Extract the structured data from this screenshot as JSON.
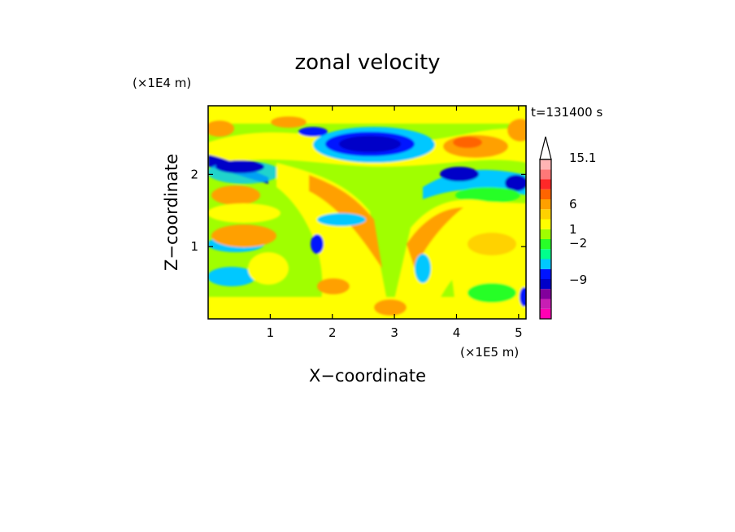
{
  "chart_data": {
    "type": "heatmap",
    "title": "zonal velocity",
    "xlabel": "X−coordinate",
    "ylabel": "Z−coordinate",
    "x_multiplier": "(×1E5 m)",
    "y_multiplier": "(×1E4 m)",
    "time_label": "t=131400 s",
    "xlim": [
      0,
      5.12
    ],
    "ylim": [
      0,
      2.95
    ],
    "x_ticks": [
      1,
      2,
      3,
      4,
      5
    ],
    "y_ticks": [
      1,
      2
    ],
    "x_tick_labels": [
      "1",
      "2",
      "3",
      "4",
      "5"
    ],
    "y_tick_labels": [
      "1",
      "2"
    ],
    "colorbar": {
      "colors": [
        "#ff00b4",
        "#c81eb4",
        "#82009c",
        "#0000c8",
        "#0014ff",
        "#00c8ff",
        "#00ff8c",
        "#28ff28",
        "#a0ff00",
        "#ffff00",
        "#ffd200",
        "#ffa000",
        "#ff6400",
        "#ff2828",
        "#ff7878",
        "#ffb4b4"
      ],
      "labels": [
        {
          "text": "15.1",
          "value": 15.1
        },
        {
          "text": "6",
          "value": 6
        },
        {
          "text": "1",
          "value": 1
        },
        {
          "text": "−2",
          "value": -2
        },
        {
          "text": "−9",
          "value": -9
        }
      ]
    },
    "grid": "off",
    "legend": "colorbar at right"
  }
}
